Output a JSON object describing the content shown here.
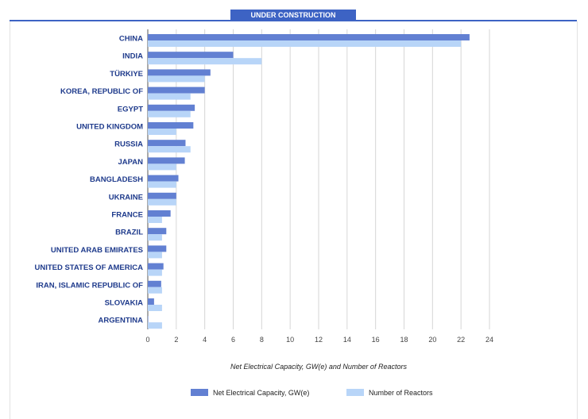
{
  "header": {
    "tab_label": "UNDER CONSTRUCTION"
  },
  "colors": {
    "capacity": "#6280d2",
    "reactors": "#b8d5f8",
    "accent": "#3d63c4",
    "label": "#1f3b8c"
  },
  "chart_data": {
    "type": "bar",
    "orientation": "horizontal",
    "title": "",
    "xlabel": "Net Electrical Capacity, GW(e) and Number of Reactors",
    "ylabel": "",
    "xlim": [
      0,
      24
    ],
    "xticks": [
      0,
      2,
      4,
      6,
      8,
      10,
      12,
      14,
      16,
      18,
      20,
      22,
      24
    ],
    "grid": true,
    "legend_position": "bottom",
    "categories": [
      "CHINA",
      "INDIA",
      "TÜRKIYE",
      "KOREA, REPUBLIC OF",
      "EGYPT",
      "UNITED KINGDOM",
      "RUSSIA",
      "JAPAN",
      "BANGLADESH",
      "UKRAINE",
      "FRANCE",
      "BRAZIL",
      "UNITED ARAB EMIRATES",
      "UNITED STATES OF AMERICA",
      "IRAN, ISLAMIC REPUBLIC OF",
      "SLOVAKIA",
      "ARGENTINA"
    ],
    "series": [
      {
        "name": "Net Electrical Capacity, GW(e)",
        "values": [
          22.6,
          6.0,
          4.4,
          4.0,
          3.3,
          3.2,
          2.65,
          2.6,
          2.15,
          2.0,
          1.6,
          1.3,
          1.3,
          1.1,
          0.94,
          0.44,
          0.03
        ]
      },
      {
        "name": "Number of Reactors",
        "values": [
          22,
          8,
          4,
          3,
          3,
          2,
          3,
          2,
          2,
          2,
          1,
          1,
          1,
          1,
          1,
          1,
          1
        ]
      }
    ]
  }
}
